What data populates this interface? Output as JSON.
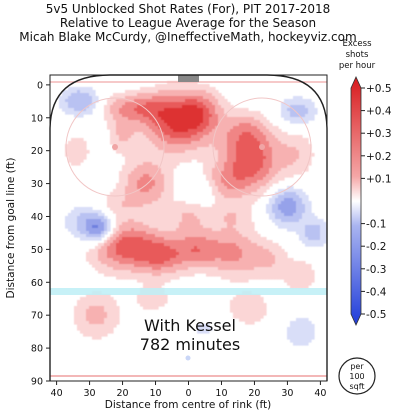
{
  "chart_data": {
    "type": "heatmap",
    "title_lines": [
      "5v5 Unblocked Shot Rates (For), PIT 2017-2018",
      "Relative to League Average for the Season",
      "Micah Blake McCurdy, @IneffectiveMath, hockeyviz.com"
    ],
    "xlabel": "Distance from centre of rink (ft)",
    "ylabel": "Distance from goal line (ft)",
    "xlim": [
      42,
      -42
    ],
    "ylim": [
      -3,
      90
    ],
    "x_ticks": [
      40,
      30,
      20,
      10,
      0,
      10,
      20,
      30,
      40
    ],
    "x_tick_values": [
      -40,
      -30,
      -20,
      -10,
      0,
      10,
      20,
      30,
      40
    ],
    "y_ticks": [
      0,
      10,
      20,
      30,
      40,
      50,
      60,
      70,
      80,
      90
    ],
    "colorbar": {
      "title_lines": [
        "Excess",
        "shots",
        "per hour"
      ],
      "ticks": [
        "+0.5",
        "+0.4",
        "+0.3",
        "+0.2",
        "+0.1",
        "-0.1",
        "-0.2",
        "-0.3",
        "-0.4",
        "-0.5"
      ],
      "tick_values": [
        0.5,
        0.4,
        0.3,
        0.2,
        0.1,
        -0.1,
        -0.2,
        -0.3,
        -0.4,
        -0.5
      ],
      "range": [
        -0.5,
        0.5
      ],
      "unit_lines": [
        "per",
        "100",
        "sqft"
      ]
    },
    "annotation_lines": [
      "With Kessel",
      "782 minutes"
    ],
    "blobs": [
      {
        "x": 3,
        "y": 11,
        "sx": 7,
        "sy": 6,
        "v": 0.5
      },
      {
        "x": -4,
        "y": 8,
        "sx": 4,
        "sy": 4,
        "v": 0.2
      },
      {
        "x": -19,
        "y": 23,
        "sx": 6,
        "sy": 6,
        "v": 0.42
      },
      {
        "x": -17,
        "y": 14,
        "sx": 5,
        "sy": 4,
        "v": 0.2
      },
      {
        "x": -11,
        "y": 30,
        "sx": 5,
        "sy": 4,
        "v": 0.2
      },
      {
        "x": 14,
        "y": 7,
        "sx": 5,
        "sy": 3,
        "v": 0.25
      },
      {
        "x": 22,
        "y": 7,
        "sx": 4,
        "sy": 3,
        "v": 0.12
      },
      {
        "x": 13,
        "y": 30,
        "sx": 5,
        "sy": 5,
        "v": 0.28
      },
      {
        "x": 20,
        "y": 15,
        "sx": 3,
        "sy": 4,
        "v": 0.15
      },
      {
        "x": 19,
        "y": 49,
        "sx": 7,
        "sy": 5,
        "v": 0.42
      },
      {
        "x": 8,
        "y": 52,
        "sx": 5,
        "sy": 4,
        "v": 0.3
      },
      {
        "x": -3,
        "y": 50,
        "sx": 5,
        "sy": 4,
        "v": 0.3
      },
      {
        "x": -14,
        "y": 51,
        "sx": 5,
        "sy": 5,
        "v": 0.25
      },
      {
        "x": -24,
        "y": 53,
        "sx": 4,
        "sy": 4,
        "v": 0.15
      },
      {
        "x": 0,
        "y": 40,
        "sx": 4,
        "sy": 4,
        "v": 0.15
      },
      {
        "x": 23,
        "y": 37,
        "sx": 5,
        "sy": 3,
        "v": 0.12
      },
      {
        "x": -13,
        "y": 40,
        "sx": 5,
        "sy": 3,
        "v": 0.12
      },
      {
        "x": 28,
        "y": 70,
        "sx": 5,
        "sy": 5,
        "v": 0.18
      },
      {
        "x": 11,
        "y": 65,
        "sx": 4,
        "sy": 3,
        "v": 0.12
      },
      {
        "x": -18,
        "y": 68,
        "sx": 5,
        "sy": 4,
        "v": 0.13
      },
      {
        "x": -34,
        "y": 58,
        "sx": 4,
        "sy": 4,
        "v": 0.12
      },
      {
        "x": -33,
        "y": 21,
        "sx": 4,
        "sy": 5,
        "v": 0.13
      },
      {
        "x": 34,
        "y": 20,
        "sx": 4,
        "sy": 5,
        "v": 0.1
      },
      {
        "x": 33,
        "y": 5,
        "sx": 4,
        "sy": 3,
        "v": -0.25
      },
      {
        "x": -33,
        "y": 8,
        "sx": 4,
        "sy": 3,
        "v": -0.2
      },
      {
        "x": -30,
        "y": 37,
        "sx": 4,
        "sy": 4,
        "v": -0.32
      },
      {
        "x": 30,
        "y": 42,
        "sx": 5,
        "sy": 4,
        "v": -0.22
      },
      {
        "x": 27,
        "y": 44,
        "sx": 3,
        "sy": 3,
        "v": -0.3
      },
      {
        "x": -38,
        "y": 45,
        "sx": 3,
        "sy": 3,
        "v": -0.2
      },
      {
        "x": -34,
        "y": 75,
        "sx": 4,
        "sy": 4,
        "v": -0.12
      },
      {
        "x": -4,
        "y": 32,
        "sx": 4,
        "sy": 3,
        "v": -0.12
      },
      {
        "x": -5,
        "y": 74,
        "sx": 5,
        "sy": 3,
        "v": -0.08
      }
    ]
  }
}
